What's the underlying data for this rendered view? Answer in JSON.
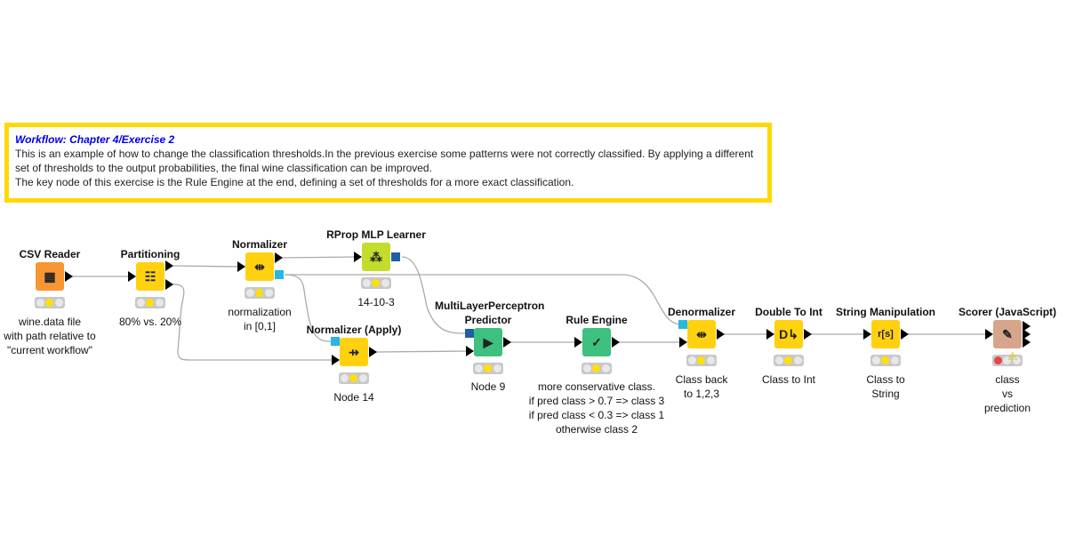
{
  "annotation": {
    "title": "Workflow: Chapter 4/Exercise 2",
    "lines": [
      "This is an example of how to change the classification thresholds.In the previous exercise some patterns were not correctly classified. By applying a different set of thresholds to the output probabilities, the final wine classification can be improved.",
      "The key node of this exercise is the Rule Engine at the end, defining a set of thresholds for a more exact classification."
    ],
    "border_color": "#FFD800"
  },
  "nodes": [
    {
      "id": "csv-reader",
      "title": "CSV Reader",
      "label": "wine.data file\nwith path relative to\n\"current workflow\"",
      "color": "#F79633",
      "icon": "csv-reader-icon",
      "glyph": "▦",
      "status": "configured"
    },
    {
      "id": "partitioning",
      "title": "Partitioning",
      "label": "80% vs. 20%",
      "color": "#FFD10F",
      "icon": "partition-icon",
      "glyph": "☷",
      "status": "configured"
    },
    {
      "id": "normalizer",
      "title": "Normalizer",
      "label": "normalization\nin [0,1]",
      "color": "#FFD10F",
      "icon": "normalizer-icon",
      "glyph": "⇹",
      "status": "configured"
    },
    {
      "id": "rprop-mlp-learner",
      "title": "RProp MLP Learner",
      "label": "14-10-3",
      "color": "#C4DC2B",
      "icon": "neural-net-icon",
      "glyph": "⁂",
      "status": "configured"
    },
    {
      "id": "normalizer-apply",
      "title": "Normalizer (Apply)",
      "label": "Node 14",
      "color": "#FFD10F",
      "icon": "normalizer-apply-icon",
      "glyph": "⇸",
      "status": "configured"
    },
    {
      "id": "mlp-predictor",
      "title": "MultiLayerPerceptron\nPredictor",
      "label": "Node 9",
      "color": "#3EC07F",
      "icon": "predictor-icon",
      "glyph": "▶",
      "status": "configured"
    },
    {
      "id": "rule-engine",
      "title": "Rule Engine",
      "label": "more conservative class.\nif pred class > 0.7 => class 3\nif pred class < 0.3 => class 1\notherwise class 2",
      "color": "#3EC07F",
      "icon": "rule-document-icon",
      "glyph": "✓",
      "status": "configured"
    },
    {
      "id": "denormalizer",
      "title": "Denormalizer",
      "label": "Class back\nto 1,2,3",
      "color": "#FFD10F",
      "icon": "denormalizer-icon",
      "glyph": "⇹",
      "status": "configured"
    },
    {
      "id": "double-to-int",
      "title": "Double To Int",
      "label": "Class to Int",
      "color": "#FFD10F",
      "icon": "double-to-int-icon",
      "glyph": "D↳",
      "status": "configured"
    },
    {
      "id": "string-manipulation",
      "title": "String Manipulation",
      "label": "Class to\nString",
      "color": "#FFD10F",
      "icon": "string-manipulation-icon",
      "glyph": "r[s]",
      "status": "configured"
    },
    {
      "id": "scorer-js",
      "title": "Scorer (JavaScript)",
      "label": "class\nvs\nprediction",
      "color": "#D7A68A",
      "icon": "scorer-icon",
      "glyph": "✎",
      "status": "error-warning"
    }
  ]
}
